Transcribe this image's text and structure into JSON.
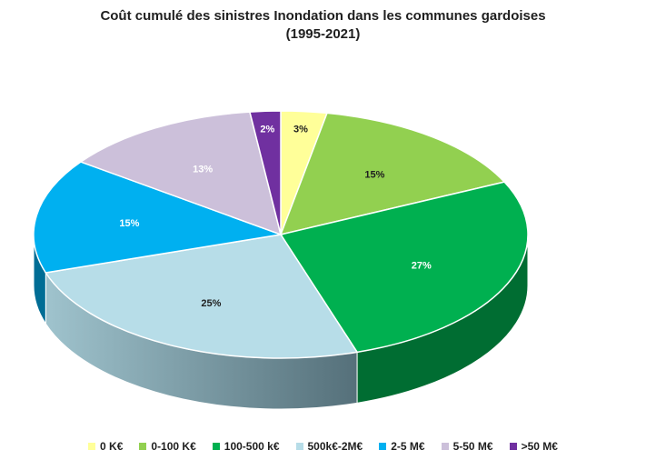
{
  "chart_data": {
    "type": "pie",
    "title_line1": "Coût cumulé des sinistres Inondation dans les communes gardoises",
    "title_line2": "(1995-2021)",
    "slices": [
      {
        "label": "0 K€",
        "value": 3,
        "data_label": "3%",
        "color": "#FFFF99"
      },
      {
        "label": "0-100 K€",
        "value": 15,
        "data_label": "15%",
        "color": "#92D050"
      },
      {
        "label": "100-500 k€",
        "value": 27,
        "data_label": "27%",
        "color": "#00B050"
      },
      {
        "label": "500k€-2M€",
        "value": 25,
        "data_label": "25%",
        "color": "#B7DDE8"
      },
      {
        "label": "2-5 M€",
        "value": 15,
        "data_label": "15%",
        "color": "#00B0F0"
      },
      {
        "label": "5-50 M€",
        "value": 13,
        "data_label": "13%",
        "color": "#CCC0DA"
      },
      {
        "label": ">50 M€",
        "value": 2,
        "data_label": "2%",
        "color": "#7030A0"
      }
    ],
    "legend_position": "bottom"
  }
}
